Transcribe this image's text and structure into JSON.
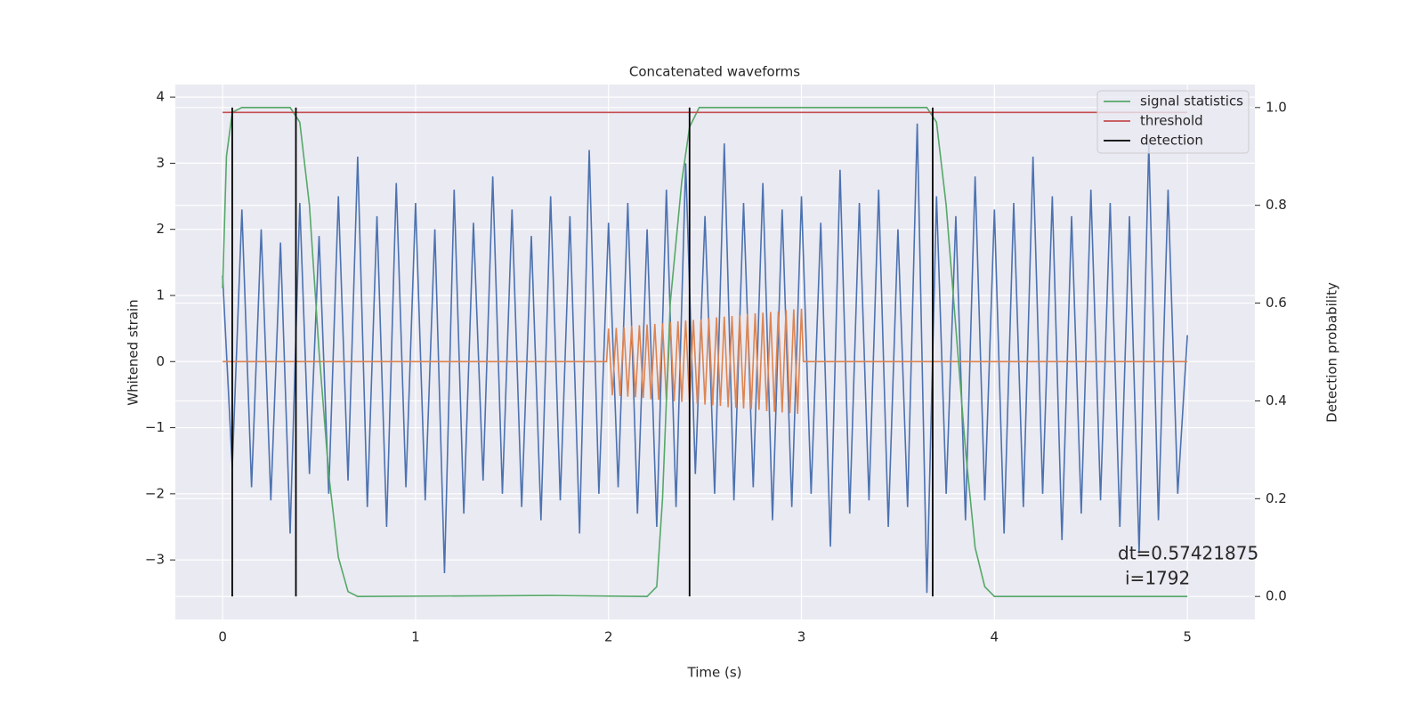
{
  "chart_data": {
    "type": "line",
    "title": "Concatenated waveforms",
    "xlabel": "Time (s)",
    "ylabel": "Whitened strain",
    "y2label": "Detection probability",
    "annotation": [
      "dt=0.57421875",
      "i=1792"
    ],
    "xlim": [
      -0.245,
      5.35
    ],
    "ylim": [
      -3.9,
      4.19
    ],
    "y2lim": [
      -0.047,
      1.047
    ],
    "xticks": [
      0,
      1,
      2,
      3,
      4,
      5
    ],
    "yticks": [
      {
        "value": -3,
        "label": "−3"
      },
      {
        "value": -2,
        "label": "−2"
      },
      {
        "value": -1,
        "label": "−1"
      },
      0,
      1,
      2,
      3,
      4
    ],
    "y2ticks": [
      {
        "value": 0,
        "label": "0.0"
      },
      0.2,
      0.4,
      0.6,
      0.8,
      {
        "value": 1,
        "label": "1.0"
      }
    ],
    "grid": true,
    "legend": "upper right",
    "series": [
      {
        "color": "#4c72b0",
        "x": [
          0,
          0.05,
          0.1,
          0.15,
          0.2,
          0.25,
          0.3,
          0.35,
          0.4,
          0.45,
          0.5,
          0.55,
          0.6,
          0.65,
          0.7,
          0.75,
          0.8,
          0.85,
          0.9,
          0.95,
          1,
          1.05,
          1.1,
          1.15,
          1.2,
          1.25,
          1.3,
          1.35,
          1.4,
          1.45,
          1.5,
          1.55,
          1.6,
          1.65,
          1.7,
          1.75,
          1.8,
          1.85,
          1.9,
          1.95,
          2,
          2.05,
          2.1,
          2.15,
          2.2,
          2.25,
          2.3,
          2.35,
          2.4,
          2.45,
          2.5,
          2.55,
          2.6,
          2.65,
          2.7,
          2.75,
          2.8,
          2.85,
          2.9,
          2.95,
          3,
          3.05,
          3.1,
          3.15,
          3.2,
          3.25,
          3.3,
          3.35,
          3.4,
          3.45,
          3.5,
          3.55,
          3.6,
          3.65,
          3.7,
          3.75,
          3.8,
          3.85,
          3.9,
          3.95,
          4,
          4.05,
          4.1,
          4.15,
          4.2,
          4.25,
          4.3,
          4.35,
          4.4,
          4.45,
          4.5,
          4.55,
          4.6,
          4.65,
          4.7,
          4.75,
          4.8,
          4.85,
          4.9,
          4.95,
          5
        ],
        "values": [
          1.3,
          -1.6,
          2.3,
          -1.9,
          2.0,
          -2.1,
          1.8,
          -2.6,
          2.4,
          -1.7,
          1.9,
          -2.0,
          2.5,
          -1.8,
          3.1,
          -2.2,
          2.2,
          -2.5,
          2.7,
          -1.9,
          2.4,
          -2.1,
          2.0,
          -3.2,
          2.6,
          -2.3,
          2.1,
          -1.8,
          2.8,
          -2.0,
          2.3,
          -2.2,
          1.9,
          -2.4,
          2.5,
          -2.1,
          2.2,
          -2.6,
          3.2,
          -2.0,
          2.1,
          -1.9,
          2.4,
          -2.3,
          2.0,
          -2.5,
          2.6,
          -2.2,
          3.0,
          -1.7,
          2.2,
          -2.0,
          3.3,
          -2.1,
          2.4,
          -1.9,
          2.7,
          -2.4,
          2.3,
          -2.2,
          2.5,
          -2.0,
          2.1,
          -2.8,
          2.9,
          -2.3,
          2.4,
          -2.1,
          2.6,
          -2.5,
          2.0,
          -2.2,
          3.6,
          -3.5,
          2.5,
          -2.0,
          2.2,
          -2.4,
          2.8,
          -2.1,
          2.3,
          -2.6,
          2.4,
          -2.2,
          3.1,
          -2.0,
          2.5,
          -2.7,
          2.2,
          -2.3,
          2.6,
          -2.1,
          2.4,
          -2.5,
          2.2,
          -2.9,
          3.3,
          -2.4,
          2.6,
          -2.0,
          0.4
        ]
      },
      {
        "color": "#dd8452",
        "x": [
          0,
          1.99,
          2.0,
          2.02,
          2.04,
          2.06,
          2.08,
          2.1,
          2.12,
          2.14,
          2.16,
          2.18,
          2.2,
          2.22,
          2.24,
          2.26,
          2.28,
          2.3,
          2.32,
          2.34,
          2.36,
          2.38,
          2.4,
          2.42,
          2.44,
          2.46,
          2.48,
          2.5,
          2.52,
          2.54,
          2.56,
          2.58,
          2.6,
          2.62,
          2.64,
          2.66,
          2.68,
          2.7,
          2.72,
          2.74,
          2.76,
          2.78,
          2.8,
          2.82,
          2.84,
          2.86,
          2.88,
          2.9,
          2.92,
          2.94,
          2.96,
          2.98,
          3.0,
          3.01,
          5
        ],
        "values": [
          0,
          0,
          0.5,
          -0.51,
          0.51,
          -0.52,
          0.52,
          -0.53,
          0.54,
          -0.54,
          0.55,
          -0.55,
          0.56,
          -0.57,
          0.57,
          -0.58,
          0.58,
          -0.59,
          0.6,
          -0.6,
          0.61,
          -0.61,
          0.62,
          -0.63,
          0.63,
          -0.64,
          0.64,
          -0.65,
          0.66,
          -0.66,
          0.67,
          -0.67,
          0.68,
          -0.69,
          0.69,
          -0.7,
          0.7,
          -0.71,
          0.72,
          -0.72,
          0.73,
          -0.73,
          0.74,
          -0.75,
          0.75,
          -0.76,
          0.76,
          -0.77,
          0.78,
          -0.78,
          0.79,
          -0.79,
          0.8,
          0,
          0
        ]
      },
      {
        "name": "signal statistics",
        "color": "#55a868",
        "axis": "y2",
        "x": [
          0,
          0.02,
          0.05,
          0.1,
          0.35,
          0.4,
          0.45,
          0.5,
          0.55,
          0.6,
          0.65,
          0.7,
          1.7,
          2.2,
          2.25,
          2.28,
          2.32,
          2.38,
          2.42,
          2.47,
          3.65,
          3.7,
          3.75,
          3.8,
          3.85,
          3.9,
          3.95,
          4.0,
          5.0
        ],
        "values": [
          0.63,
          0.9,
          0.99,
          1.0,
          1.0,
          0.97,
          0.8,
          0.5,
          0.25,
          0.08,
          0.01,
          0.0,
          0.002,
          0.0,
          0.02,
          0.2,
          0.6,
          0.85,
          0.96,
          1.0,
          1.0,
          0.97,
          0.8,
          0.55,
          0.3,
          0.1,
          0.02,
          0.0,
          0.0
        ]
      },
      {
        "name": "threshold",
        "color": "#c44e52",
        "axis": "y2",
        "x": [
          0,
          5
        ],
        "values": [
          0.99,
          0.99
        ]
      }
    ],
    "detections": {
      "name": "detection",
      "color": "#000000",
      "x": [
        0.05,
        0.38,
        2.42,
        3.68
      ],
      "span": [
        0,
        1
      ]
    }
  }
}
